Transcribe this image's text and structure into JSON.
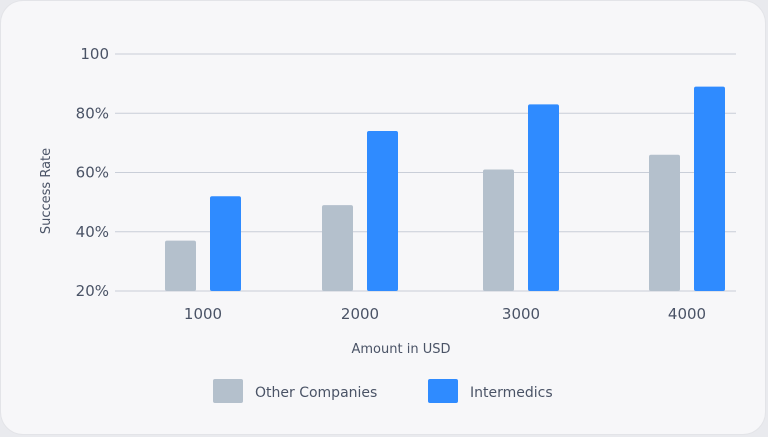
{
  "chart_data": {
    "type": "bar",
    "categories": [
      "1000",
      "2000",
      "3000",
      "4000"
    ],
    "series": [
      {
        "name": "Other Companies",
        "values": [
          37,
          49,
          61,
          66
        ],
        "color": "#b4c0cc"
      },
      {
        "name": "Intermedics",
        "values": [
          52,
          74,
          83,
          89
        ],
        "color": "#2f8bff"
      }
    ],
    "title": "",
    "xlabel": "Amount in USD",
    "ylabel": "Success Rate",
    "ylim": [
      20,
      100
    ],
    "yticks": [
      20,
      40,
      60,
      80,
      100
    ],
    "ytick_labels": [
      "20%",
      "40%",
      "60%",
      "80%",
      "100"
    ],
    "grid": true,
    "legend_position": "bottom"
  }
}
